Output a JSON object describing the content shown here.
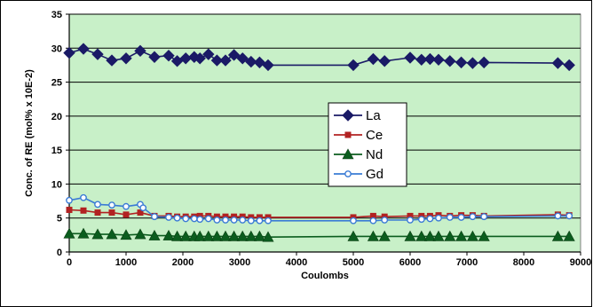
{
  "chart_data": {
    "type": "line",
    "xlabel": "Coulombs",
    "ylabel": "Conc. of RE (mol% x 10E-2)",
    "xlim": [
      0,
      9000
    ],
    "ylim": [
      0,
      35
    ],
    "x_ticks": [
      0,
      1000,
      2000,
      3000,
      4000,
      5000,
      6000,
      7000,
      8000,
      9000
    ],
    "y_ticks": [
      0,
      5,
      10,
      15,
      20,
      25,
      30,
      35
    ],
    "grid": "horizontal",
    "plot_background": "#C8F0C8",
    "legend_position": "center",
    "series": [
      {
        "name": "La",
        "color": "#1a1a66",
        "marker": "diamond",
        "x": [
          0,
          250,
          500,
          750,
          1000,
          1250,
          1500,
          1750,
          1900,
          2050,
          2200,
          2300,
          2450,
          2600,
          2750,
          2900,
          3050,
          3200,
          3350,
          3500,
          5000,
          5350,
          5550,
          6000,
          6200,
          6350,
          6500,
          6700,
          6900,
          7100,
          7300,
          8600,
          8800
        ],
        "y": [
          29.3,
          29.9,
          29.1,
          28.2,
          28.5,
          29.6,
          28.7,
          28.9,
          28.1,
          28.5,
          28.7,
          28.5,
          29.1,
          28.2,
          28.2,
          29.0,
          28.5,
          28.0,
          27.9,
          27.5,
          27.5,
          28.4,
          28.1,
          28.6,
          28.3,
          28.4,
          28.3,
          28.1,
          27.9,
          27.8,
          27.9,
          27.8,
          27.5
        ]
      },
      {
        "name": "Ce",
        "color": "#b22222",
        "marker": "square",
        "x": [
          0,
          250,
          500,
          750,
          1000,
          1250,
          1500,
          1750,
          1900,
          2050,
          2200,
          2300,
          2450,
          2600,
          2750,
          2900,
          3050,
          3200,
          3350,
          3500,
          5000,
          5350,
          5550,
          6000,
          6200,
          6350,
          6500,
          6700,
          6900,
          7100,
          7300,
          8600,
          8800
        ],
        "y": [
          6.2,
          6.1,
          5.8,
          5.8,
          5.5,
          5.8,
          5.3,
          5.3,
          5.2,
          5.2,
          5.2,
          5.3,
          5.3,
          5.2,
          5.2,
          5.2,
          5.2,
          5.1,
          5.1,
          5.1,
          5.1,
          5.3,
          5.2,
          5.3,
          5.3,
          5.3,
          5.4,
          5.3,
          5.4,
          5.4,
          5.3,
          5.5,
          5.4
        ]
      },
      {
        "name": "Nd",
        "color": "#0b5d1e",
        "marker": "triangle",
        "x": [
          0,
          250,
          500,
          750,
          1000,
          1250,
          1500,
          1750,
          1900,
          2050,
          2200,
          2300,
          2450,
          2600,
          2750,
          2900,
          3050,
          3200,
          3350,
          3500,
          5000,
          5350,
          5550,
          6000,
          6200,
          6350,
          6500,
          6700,
          6900,
          7100,
          7300,
          8600,
          8800
        ],
        "y": [
          2.7,
          2.7,
          2.6,
          2.6,
          2.5,
          2.6,
          2.4,
          2.4,
          2.3,
          2.3,
          2.3,
          2.3,
          2.3,
          2.3,
          2.3,
          2.3,
          2.3,
          2.3,
          2.3,
          2.2,
          2.3,
          2.3,
          2.3,
          2.3,
          2.3,
          2.3,
          2.3,
          2.3,
          2.3,
          2.3,
          2.3,
          2.3,
          2.3
        ]
      },
      {
        "name": "Gd",
        "color": "#3a7bd5",
        "marker": "circle",
        "x": [
          0,
          250,
          500,
          750,
          1000,
          1250,
          1300,
          1500,
          1750,
          1900,
          2050,
          2200,
          2300,
          2450,
          2600,
          2750,
          2900,
          3050,
          3200,
          3350,
          3500,
          5000,
          5350,
          5550,
          6000,
          6200,
          6350,
          6500,
          6700,
          6900,
          7100,
          7300,
          8600,
          8800
        ],
        "y": [
          7.6,
          8.0,
          7.0,
          6.9,
          6.7,
          7.0,
          6.5,
          5.2,
          5.1,
          5.0,
          4.9,
          4.9,
          4.8,
          4.9,
          4.7,
          4.7,
          4.7,
          4.7,
          4.6,
          4.6,
          4.6,
          4.6,
          4.6,
          4.7,
          4.7,
          4.8,
          4.9,
          5.0,
          5.1,
          5.1,
          5.2,
          5.2,
          5.3,
          5.3
        ]
      }
    ]
  }
}
